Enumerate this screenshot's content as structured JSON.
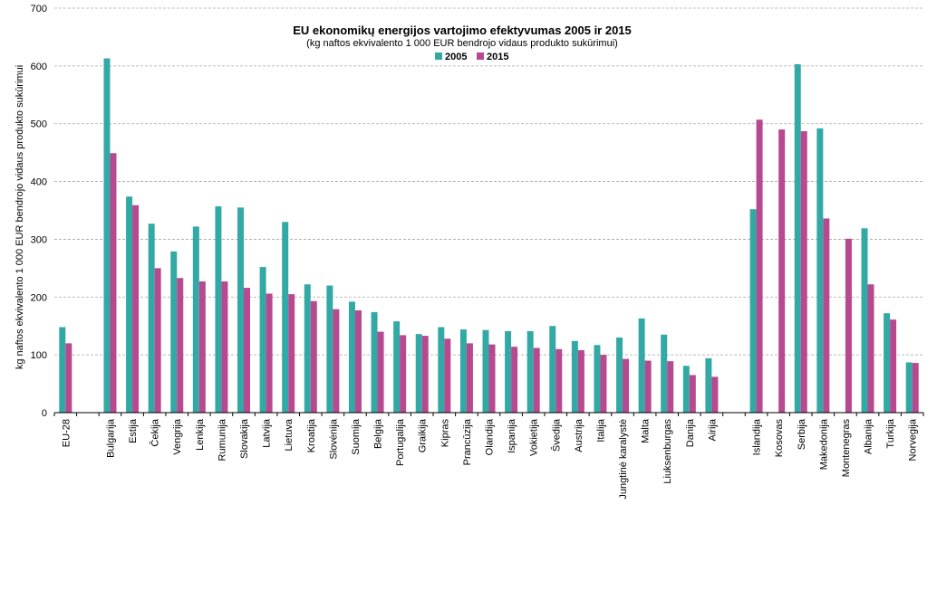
{
  "chart_data": {
    "type": "bar",
    "title": "EU ekonomikų energijos vartojimo efektyvumas  2005 ir 2015",
    "subtitle": "(kg naftos ekvivalento   1 000 EUR bendrojo vidaus produkto sukūrimui)",
    "xlabel": "",
    "ylabel": "kg naftos ekvivalento  1 000 EUR bendrojo vidaus produkto sukūrimui",
    "ylim": [
      0,
      700
    ],
    "yticks": [
      "0",
      "100",
      "200",
      "300",
      "400",
      "500",
      "600",
      "700"
    ],
    "grid": true,
    "legend_position": "top-center",
    "categories": [
      "EU-28",
      "",
      "Bulgarija",
      "Estija",
      "Čekija",
      "Vengrija",
      "Lenkija",
      "Rumunija",
      "Slovakija",
      "Latvija",
      "Lietuva",
      "Kroatija",
      "Slovėnija",
      "Suomija",
      "Belgija",
      "Portugalija",
      "Graikija",
      "Kipras",
      "Prancūzija",
      "Olandija",
      "Ispanija",
      "Vokietija",
      "Švedija",
      "Austrija",
      "Italija",
      "Jungtinė karalystė",
      "Malta",
      "Liuksenburgas",
      "Danija",
      "Airija",
      "",
      "Islandija",
      "Kosovas",
      "Serbija",
      "Makedonija",
      "Montenegras",
      "Albanija",
      "Turkija",
      "Norvegija"
    ],
    "series": [
      {
        "name": "2005",
        "color": "#33a9a6",
        "values": [
          148,
          null,
          613,
          374,
          327,
          279,
          322,
          357,
          355,
          252,
          330,
          222,
          220,
          192,
          174,
          158,
          136,
          148,
          144,
          143,
          141,
          141,
          150,
          124,
          117,
          130,
          163,
          135,
          81,
          94,
          null,
          352,
          null,
          603,
          492,
          null,
          319,
          172,
          87
        ]
      },
      {
        "name": "2015",
        "color": "#b6498f",
        "values": [
          120,
          null,
          449,
          359,
          250,
          233,
          227,
          227,
          216,
          206,
          205,
          193,
          179,
          177,
          140,
          134,
          133,
          128,
          120,
          118,
          114,
          112,
          110,
          108,
          100,
          93,
          90,
          89,
          65,
          62,
          null,
          507,
          490,
          487,
          336,
          301,
          222,
          161,
          86
        ]
      }
    ]
  }
}
